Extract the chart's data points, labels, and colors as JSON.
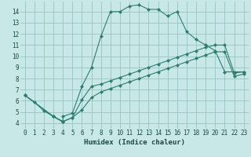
{
  "xlabel": "Humidex (Indice chaleur)",
  "bg_color": "#c8e8e8",
  "grid_color": "#a0c8c8",
  "line_color": "#2e7d6e",
  "xlim": [
    -0.5,
    23.5
  ],
  "ylim": [
    3.5,
    14.9
  ],
  "xticks": [
    0,
    1,
    2,
    3,
    4,
    5,
    6,
    7,
    8,
    9,
    10,
    11,
    12,
    13,
    14,
    15,
    16,
    17,
    18,
    19,
    20,
    21,
    22,
    23
  ],
  "yticks": [
    4,
    5,
    6,
    7,
    8,
    9,
    10,
    11,
    12,
    13,
    14
  ],
  "line1_x": [
    0,
    1,
    2,
    3,
    4,
    4,
    5,
    6,
    7,
    8,
    9,
    10,
    11,
    12,
    13,
    14,
    15,
    16,
    17,
    18,
    19,
    20,
    21,
    22,
    23
  ],
  "line1_y": [
    6.5,
    5.9,
    5.1,
    4.6,
    4.1,
    4.6,
    4.9,
    7.3,
    9.0,
    11.8,
    14.0,
    14.0,
    14.5,
    14.6,
    14.2,
    14.2,
    13.6,
    14.0,
    12.2,
    11.5,
    11.0,
    10.5,
    8.6,
    8.6,
    8.6
  ],
  "line2_x": [
    0,
    3,
    4,
    5,
    6,
    7,
    8,
    9,
    10,
    11,
    12,
    13,
    14,
    15,
    16,
    17,
    18,
    19,
    20,
    21,
    22,
    23
  ],
  "line2_y": [
    6.5,
    4.6,
    4.15,
    4.5,
    6.1,
    7.3,
    7.5,
    7.8,
    8.1,
    8.4,
    8.7,
    9.0,
    9.3,
    9.6,
    9.9,
    10.2,
    10.5,
    10.8,
    11.0,
    11.0,
    8.5,
    8.6
  ],
  "line3_x": [
    0,
    3,
    4,
    5,
    6,
    7,
    8,
    9,
    10,
    11,
    12,
    13,
    14,
    15,
    16,
    17,
    18,
    19,
    20,
    21,
    22,
    23
  ],
  "line3_y": [
    6.5,
    4.6,
    4.15,
    4.5,
    5.2,
    6.3,
    6.8,
    7.1,
    7.4,
    7.7,
    8.0,
    8.3,
    8.6,
    8.9,
    9.2,
    9.5,
    9.8,
    10.1,
    10.4,
    10.4,
    8.2,
    8.4
  ]
}
